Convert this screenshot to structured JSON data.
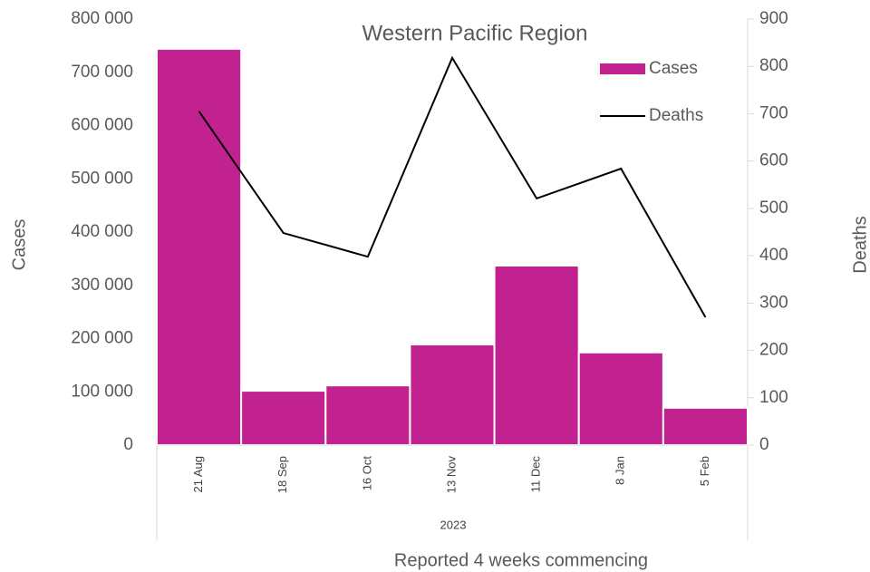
{
  "chart_data": {
    "type": "bar-line",
    "title": "Western Pacific Region",
    "group_label": "2023",
    "xlabel": "Reported 4 weeks commencing",
    "ylabel": "Cases",
    "y2label": "Deaths",
    "categories": [
      "21 Aug",
      "18 Sep",
      "16 Oct",
      "13 Nov",
      "11 Dec",
      "8 Jan",
      "5 Feb"
    ],
    "series": [
      {
        "name": "Cases",
        "type": "bar",
        "color": "#c2228f",
        "axis": "y",
        "values": [
          744000,
          102000,
          112000,
          189000,
          337000,
          174000,
          70000
        ]
      },
      {
        "name": "Deaths",
        "type": "line",
        "color": "#000000",
        "axis": "y2",
        "values": [
          705,
          448,
          398,
          818,
          521,
          584,
          270
        ]
      }
    ],
    "ylim": [
      0,
      800000
    ],
    "yticks": [
      {
        "value": 0,
        "label": "0"
      },
      {
        "value": 100000,
        "label": "100 000"
      },
      {
        "value": 200000,
        "label": "200 000"
      },
      {
        "value": 300000,
        "label": "300 000"
      },
      {
        "value": 400000,
        "label": "400 000"
      },
      {
        "value": 500000,
        "label": "500 000"
      },
      {
        "value": 600000,
        "label": "600 000"
      },
      {
        "value": 700000,
        "label": "700 000"
      },
      {
        "value": 800000,
        "label": "800 000"
      }
    ],
    "y2lim": [
      0,
      900
    ],
    "y2ticks": [
      0,
      100,
      200,
      300,
      400,
      500,
      600,
      700,
      800,
      900
    ],
    "legend": "upper right",
    "grid": false
  }
}
